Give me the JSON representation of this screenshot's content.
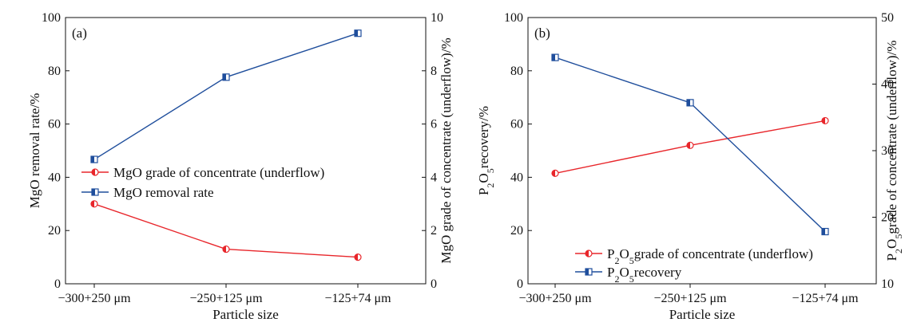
{
  "colors": {
    "red": "#e8262b",
    "blue": "#1f4e9c",
    "axis": "#111111"
  },
  "chart_data": [
    {
      "type": "line",
      "panel_label": "(a)",
      "categories": [
        "−300+250 μm",
        "−250+125 μm",
        "−125+74 μm"
      ],
      "xlabel": "Particle size",
      "ylabel": "MgO removal rate/%",
      "ylabel_parts": [
        {
          "t": "MgO removal rate/%",
          "sub": false
        }
      ],
      "ylim": [
        0,
        100
      ],
      "yticks": [
        "0",
        "20",
        "40",
        "60",
        "80",
        "100"
      ],
      "y2label": "MgO grade of concentrate (underflow)/%",
      "y2label_parts": [
        {
          "t": "MgO grade of concentrate (underflow)/%",
          "sub": false
        }
      ],
      "y2lim": [
        0,
        10
      ],
      "y2ticks": [
        "0",
        "2",
        "4",
        "6",
        "8",
        "10"
      ],
      "legend_position": "center-left",
      "series": [
        {
          "name": "MgO grade of concentrate (underflow)",
          "name_parts": [
            {
              "t": "MgO grade of concentrate (underflow)",
              "sub": false
            }
          ],
          "axis": "right",
          "color": "#e8262b",
          "marker": "circle-half",
          "values": [
            3.0,
            1.3,
            1.0
          ]
        },
        {
          "name": "MgO removal rate",
          "name_parts": [
            {
              "t": "MgO removal rate",
              "sub": false
            }
          ],
          "axis": "left",
          "color": "#1f4e9c",
          "marker": "square-half",
          "values": [
            46.7,
            77.6,
            94.1
          ]
        }
      ]
    },
    {
      "type": "line",
      "panel_label": "(b)",
      "categories": [
        "−300+250 μm",
        "−250+125 μm",
        "−125+74 μm"
      ],
      "xlabel": "Particle size",
      "ylabel": "P2O5recovery/%",
      "ylabel_parts": [
        {
          "t": "P",
          "sub": false
        },
        {
          "t": "2",
          "sub": true
        },
        {
          "t": "O",
          "sub": false
        },
        {
          "t": "5",
          "sub": true
        },
        {
          "t": "recovery/%",
          "sub": false
        }
      ],
      "ylim": [
        0,
        100
      ],
      "yticks": [
        "0",
        "20",
        "40",
        "60",
        "80",
        "100"
      ],
      "y2label": "P2O5grade of concentrate (underflow)/%",
      "y2label_parts": [
        {
          "t": "P",
          "sub": false
        },
        {
          "t": "2",
          "sub": true
        },
        {
          "t": "O",
          "sub": false
        },
        {
          "t": "5",
          "sub": true
        },
        {
          "t": "grade of concentrate (underflow)/%",
          "sub": false
        }
      ],
      "y2lim": [
        10,
        50
      ],
      "y2ticks": [
        "10",
        "20",
        "30",
        "40",
        "50"
      ],
      "legend_position": "bottom-right",
      "series": [
        {
          "name": "P2O5grade of concentrate (underflow)",
          "name_parts": [
            {
              "t": "P",
              "sub": false
            },
            {
              "t": "2",
              "sub": true
            },
            {
              "t": "O",
              "sub": false
            },
            {
              "t": "5",
              "sub": true
            },
            {
              "t": "grade of concentrate (underflow)",
              "sub": false
            }
          ],
          "axis": "right",
          "color": "#e8262b",
          "marker": "circle-half",
          "values": [
            26.6,
            30.8,
            34.5
          ]
        },
        {
          "name": "P2O5recovery",
          "name_parts": [
            {
              "t": "P",
              "sub": false
            },
            {
              "t": "2",
              "sub": true
            },
            {
              "t": "O",
              "sub": false
            },
            {
              "t": "5",
              "sub": true
            },
            {
              "t": "recovery",
              "sub": false
            }
          ],
          "axis": "left",
          "color": "#1f4e9c",
          "marker": "square-half",
          "values": [
            85.0,
            68.0,
            19.6
          ]
        }
      ]
    }
  ]
}
